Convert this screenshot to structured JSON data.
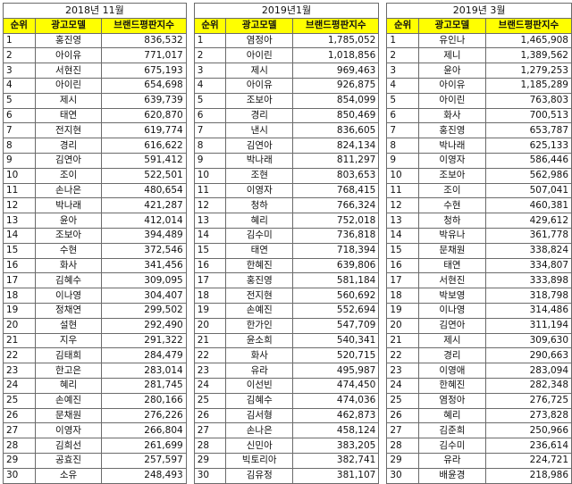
{
  "tables": [
    {
      "period": "2018년 11월",
      "headers": [
        "순위",
        "광고모델",
        "브랜드평판지수"
      ],
      "rows": [
        [
          "1",
          "홍진영",
          "836,532"
        ],
        [
          "2",
          "아이유",
          "771,017"
        ],
        [
          "3",
          "서현진",
          "675,193"
        ],
        [
          "4",
          "아이린",
          "654,698"
        ],
        [
          "5",
          "제시",
          "639,739"
        ],
        [
          "6",
          "태연",
          "620,870"
        ],
        [
          "7",
          "전지현",
          "619,774"
        ],
        [
          "8",
          "경리",
          "616,622"
        ],
        [
          "9",
          "김연아",
          "591,412"
        ],
        [
          "10",
          "조이",
          "522,501"
        ],
        [
          "11",
          "손나은",
          "480,654"
        ],
        [
          "12",
          "박나래",
          "421,287"
        ],
        [
          "13",
          "윤아",
          "412,014"
        ],
        [
          "14",
          "조보아",
          "394,489"
        ],
        [
          "15",
          "수현",
          "372,546"
        ],
        [
          "16",
          "화사",
          "341,456"
        ],
        [
          "17",
          "김혜수",
          "309,095"
        ],
        [
          "18",
          "이나영",
          "304,407"
        ],
        [
          "19",
          "정채연",
          "299,502"
        ],
        [
          "20",
          "설현",
          "292,490"
        ],
        [
          "21",
          "지우",
          "291,322"
        ],
        [
          "22",
          "김태희",
          "284,479"
        ],
        [
          "23",
          "한고은",
          "283,014"
        ],
        [
          "24",
          "혜리",
          "281,745"
        ],
        [
          "25",
          "손예진",
          "280,166"
        ],
        [
          "26",
          "문채원",
          "276,226"
        ],
        [
          "27",
          "이영자",
          "266,804"
        ],
        [
          "28",
          "김희선",
          "261,699"
        ],
        [
          "29",
          "공효진",
          "257,597"
        ],
        [
          "30",
          "소유",
          "248,493"
        ]
      ]
    },
    {
      "period": "2019년1월",
      "headers": [
        "순위",
        "광고모델",
        "브랜드평판지수"
      ],
      "rows": [
        [
          "1",
          "염정아",
          "1,785,052"
        ],
        [
          "2",
          "아이린",
          "1,018,856"
        ],
        [
          "3",
          "제시",
          "969,463"
        ],
        [
          "4",
          "아이유",
          "926,875"
        ],
        [
          "5",
          "조보아",
          "854,099"
        ],
        [
          "6",
          "경리",
          "850,469"
        ],
        [
          "7",
          "낸시",
          "836,605"
        ],
        [
          "8",
          "김연아",
          "824,134"
        ],
        [
          "9",
          "박나래",
          "811,297"
        ],
        [
          "10",
          "조현",
          "803,653"
        ],
        [
          "11",
          "이영자",
          "768,415"
        ],
        [
          "12",
          "청하",
          "766,324"
        ],
        [
          "13",
          "혜리",
          "752,018"
        ],
        [
          "14",
          "김수미",
          "736,818"
        ],
        [
          "15",
          "태연",
          "718,394"
        ],
        [
          "16",
          "한혜진",
          "639,806"
        ],
        [
          "17",
          "홍진영",
          "581,184"
        ],
        [
          "18",
          "전지현",
          "560,692"
        ],
        [
          "19",
          "손예진",
          "552,694"
        ],
        [
          "20",
          "한가인",
          "547,709"
        ],
        [
          "21",
          "윤소희",
          "540,341"
        ],
        [
          "22",
          "화사",
          "520,715"
        ],
        [
          "23",
          "유라",
          "495,987"
        ],
        [
          "24",
          "이선빈",
          "474,450"
        ],
        [
          "25",
          "김혜수",
          "474,036"
        ],
        [
          "26",
          "김서형",
          "462,873"
        ],
        [
          "27",
          "손나은",
          "458,124"
        ],
        [
          "28",
          "신민아",
          "383,205"
        ],
        [
          "29",
          "빅토리아",
          "382,741"
        ],
        [
          "30",
          "김유정",
          "381,107"
        ]
      ]
    },
    {
      "period": "2019년 3월",
      "headers": [
        "순위",
        "광고모델",
        "브랜드평판지수"
      ],
      "rows": [
        [
          "1",
          "유인나",
          "1,465,908"
        ],
        [
          "2",
          "제니",
          "1,389,562"
        ],
        [
          "3",
          "윤아",
          "1,279,253"
        ],
        [
          "4",
          "아이유",
          "1,185,289"
        ],
        [
          "5",
          "아이린",
          "763,803"
        ],
        [
          "6",
          "화사",
          "700,513"
        ],
        [
          "7",
          "홍진영",
          "653,787"
        ],
        [
          "8",
          "박나래",
          "625,133"
        ],
        [
          "9",
          "이영자",
          "586,446"
        ],
        [
          "10",
          "조보아",
          "562,986"
        ],
        [
          "11",
          "조이",
          "507,041"
        ],
        [
          "12",
          "수현",
          "460,381"
        ],
        [
          "13",
          "청하",
          "429,612"
        ],
        [
          "14",
          "박유나",
          "361,778"
        ],
        [
          "15",
          "문채원",
          "338,824"
        ],
        [
          "16",
          "태연",
          "334,807"
        ],
        [
          "17",
          "서현진",
          "333,898"
        ],
        [
          "18",
          "박보영",
          "318,798"
        ],
        [
          "19",
          "이나영",
          "314,486"
        ],
        [
          "20",
          "김연아",
          "311,194"
        ],
        [
          "21",
          "제시",
          "309,630"
        ],
        [
          "22",
          "경리",
          "290,663"
        ],
        [
          "23",
          "이영애",
          "283,094"
        ],
        [
          "24",
          "한혜진",
          "282,348"
        ],
        [
          "25",
          "염정아",
          "276,725"
        ],
        [
          "26",
          "혜리",
          "273,828"
        ],
        [
          "27",
          "김준희",
          "250,966"
        ],
        [
          "28",
          "김수미",
          "236,614"
        ],
        [
          "29",
          "유라",
          "224,721"
        ],
        [
          "30",
          "배윤경",
          "218,986"
        ]
      ]
    }
  ]
}
